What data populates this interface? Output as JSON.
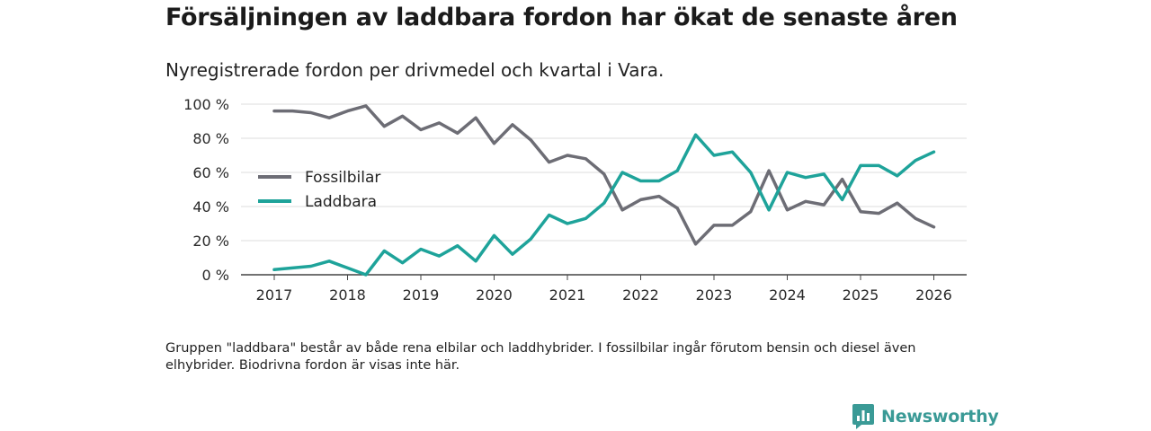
{
  "title": "Försäljningen av laddbara fordon har ökat de senaste åren",
  "subtitle": "Nyregistrerade fordon per drivmedel och kvartal i Vara.",
  "footnote": "Gruppen \"laddbara\" består av både rena elbilar och laddhybrider. I fossilbilar ingår förutom bensin och diesel även elhybrider. Biodrivna fordon är visas inte här.",
  "brand": {
    "name": "Newsworthy",
    "icon": "newsworthy-logo-icon",
    "color": "#3a9a96"
  },
  "chart_data": {
    "type": "line",
    "title": "Försäljningen av laddbara fordon har ökat de senaste åren",
    "subtitle": "Nyregistrerade fordon per drivmedel och kvartal i Vara.",
    "xlabel": "",
    "ylabel": "",
    "xlim": [
      2017,
      2026.25
    ],
    "ylim": [
      0,
      100
    ],
    "x_ticks": [
      2017,
      2018,
      2019,
      2020,
      2021,
      2022,
      2023,
      2024,
      2025,
      2026
    ],
    "y_ticks": [
      {
        "value": 0,
        "label": "0 %"
      },
      {
        "value": 20,
        "label": "20 %"
      },
      {
        "value": 40,
        "label": "40 %"
      },
      {
        "value": 60,
        "label": "60 %"
      },
      {
        "value": 80,
        "label": "80 %"
      },
      {
        "value": 100,
        "label": "100 %"
      }
    ],
    "grid": true,
    "legend_position": "left",
    "x": [
      2017.0,
      2017.25,
      2017.5,
      2017.75,
      2018.0,
      2018.25,
      2018.5,
      2018.75,
      2019.0,
      2019.25,
      2019.5,
      2019.75,
      2020.0,
      2020.25,
      2020.5,
      2020.75,
      2021.0,
      2021.25,
      2021.5,
      2021.75,
      2022.0,
      2022.25,
      2022.5,
      2022.75,
      2023.0,
      2023.25,
      2023.5,
      2023.75,
      2024.0,
      2024.25,
      2024.5,
      2024.75,
      2025.0,
      2025.25,
      2025.5,
      2025.75,
      2026.0
    ],
    "series": [
      {
        "name": "Fossilbilar",
        "color": "#6d6d75",
        "values": [
          96,
          96,
          95,
          92,
          96,
          99,
          87,
          93,
          85,
          89,
          83,
          92,
          77,
          88,
          79,
          66,
          70,
          68,
          59,
          38,
          44,
          46,
          39,
          18,
          29,
          29,
          37,
          61,
          38,
          43,
          41,
          56,
          37,
          36,
          42,
          33,
          28
        ]
      },
      {
        "name": "Laddbara",
        "color": "#1ea39a",
        "values": [
          3,
          4,
          5,
          8,
          4,
          0,
          14,
          7,
          15,
          11,
          17,
          8,
          23,
          12,
          21,
          35,
          30,
          33,
          42,
          60,
          55,
          55,
          61,
          82,
          70,
          72,
          60,
          38,
          60,
          57,
          59,
          44,
          64,
          64,
          58,
          67,
          72
        ]
      }
    ]
  }
}
